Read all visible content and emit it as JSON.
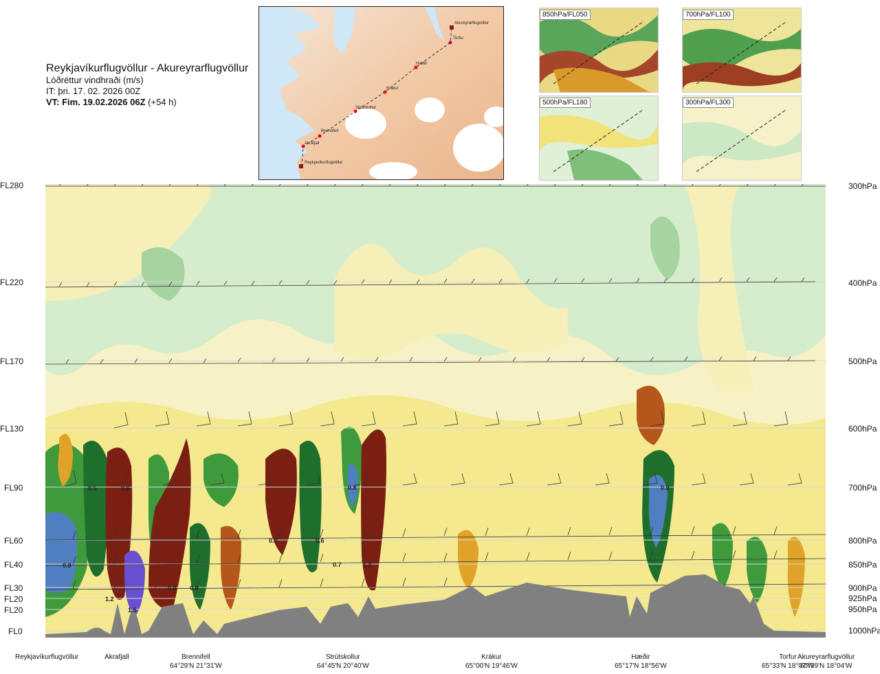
{
  "header": {
    "route": "Reykjavíkurflugvöllur - Akureyrarflugvöllur",
    "parameter": "Lóðréttur vindhraði (m/s)",
    "issue_time": "IT: þri. 17. 02. 2026 00Z",
    "valid_time_bold": "VT: Fim. 19.02.2026 06Z",
    "valid_time_offset": " (+54 h)"
  },
  "route_map": {
    "points": [
      "Akureyrarflugvöllur",
      "Torfur",
      "Hæðir",
      "Krákur",
      "Strútskollur",
      "Brennifell",
      "Akrafjall",
      "Reykjavíkurflugvöllur"
    ]
  },
  "thumbnails": [
    {
      "label": "850hPa/FL050"
    },
    {
      "label": "700hPa/FL100"
    },
    {
      "label": "500hPa/FL180"
    },
    {
      "label": "300hPa/FL300"
    }
  ],
  "levels_left": [
    "FL280",
    "FL220",
    "FL170",
    "FL130",
    "FL90",
    "FL60",
    "FL40",
    "FL30",
    "FL20",
    "FL20",
    "FL0"
  ],
  "levels_right": [
    "300hPa",
    "400hPa",
    "500hPa",
    "600hPa",
    "700hPa",
    "800hPa",
    "850hPa",
    "900hPa",
    "925hPa",
    "950hPa",
    "1000hPa"
  ],
  "value_labels": [
    "0.5",
    "0.6",
    "0.8",
    "0.9",
    "0.9",
    "0.6",
    "0.8",
    "0.7",
    "1.2",
    "1.2",
    "1.5",
    "0.9",
    "0.9"
  ],
  "stations": [
    {
      "name": "Reykjavíkurflugvöllur",
      "coord": ""
    },
    {
      "name": "Akrafjall",
      "coord": ""
    },
    {
      "name": "Brennifell",
      "coord": "64°29'N 21°31'W"
    },
    {
      "name": "Strútskollur",
      "coord": "64°45'N 20°40'W"
    },
    {
      "name": "Krákur",
      "coord": "65°00'N 19°46'W"
    },
    {
      "name": "Hæðir",
      "coord": "65°17'N 18°56'W"
    },
    {
      "name": "Torfur",
      "coord": "65°33'N 18°07'W"
    },
    {
      "name": "Akureyrarflugvöllur",
      "coord": "65°39'N 18°04'W"
    }
  ],
  "colors": {
    "strong_down": "#7b1f12",
    "down_2": "#b5561a",
    "down_1": "#e0a228",
    "weak_down": "#f2e27a",
    "neutral_down": "#faf3c0",
    "neutral_up": "#dff0d6",
    "weak_up": "#9fd19a",
    "up_1": "#3f9a3b",
    "up_2": "#1e6e2c",
    "strong_up": "#4f7fbf",
    "very_strong_up": "#6a4fd0",
    "terrain": "#808080"
  }
}
